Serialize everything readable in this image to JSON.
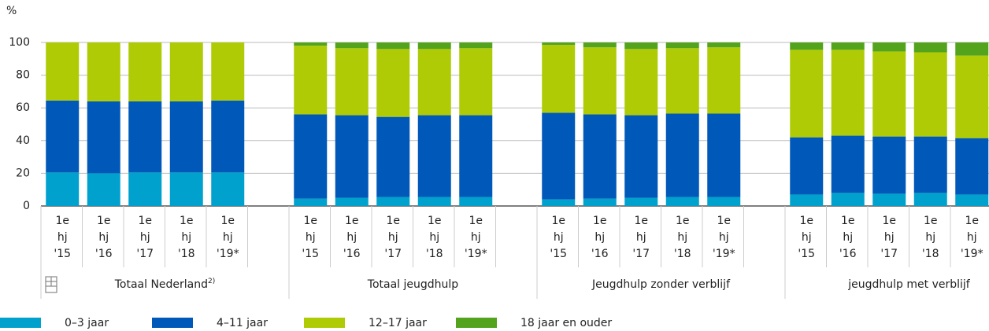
{
  "chart_data": {
    "type": "stacked-bar",
    "y_unit": "%",
    "ylim": [
      0,
      100
    ],
    "yticks": [
      0,
      20,
      40,
      60,
      80,
      100
    ],
    "grid": true,
    "groups": [
      {
        "name": "Totaal Nederland",
        "note": "2)",
        "categories": [
          [
            "1e",
            "hj",
            "'15"
          ],
          [
            "1e",
            "hj",
            "'16"
          ],
          [
            "1e",
            "hj",
            "'17"
          ],
          [
            "1e",
            "hj",
            "'18"
          ],
          [
            "1e",
            "hj",
            "'19*"
          ]
        ]
      },
      {
        "name": "Totaal jeugdhulp",
        "categories": [
          [
            "1e",
            "hj",
            "'15"
          ],
          [
            "1e",
            "hj",
            "'16"
          ],
          [
            "1e",
            "hj",
            "'17"
          ],
          [
            "1e",
            "hj",
            "'18"
          ],
          [
            "1e",
            "hj",
            "'19*"
          ]
        ]
      },
      {
        "name": "Jeugdhulp zonder verblijf",
        "categories": [
          [
            "1e",
            "hj",
            "'15"
          ],
          [
            "1e",
            "hj",
            "'16"
          ],
          [
            "1e",
            "hj",
            "'17"
          ],
          [
            "1e",
            "hj",
            "'18"
          ],
          [
            "1e",
            "hj",
            "'19*"
          ]
        ]
      },
      {
        "name": "jeugdhulp met verblijf",
        "categories": [
          [
            "1e",
            "hj",
            "'15"
          ],
          [
            "1e",
            "hj",
            "'16"
          ],
          [
            "1e",
            "hj",
            "'17"
          ],
          [
            "1e",
            "hj",
            "'18"
          ],
          [
            "1e",
            "hj",
            "'19*"
          ]
        ]
      }
    ],
    "series": [
      {
        "name": "0–3 jaar",
        "color": "#00a1cd",
        "values": [
          20.5,
          20,
          20.5,
          20.5,
          20.5,
          4.5,
          5,
          5.5,
          5.5,
          5.5,
          4,
          4.5,
          5,
          5.5,
          5.5,
          7,
          8,
          7.5,
          8,
          7
        ]
      },
      {
        "name": "4–11 jaar",
        "color": "#0058b8",
        "values": [
          44,
          44,
          43.5,
          43.5,
          44,
          51.5,
          50.5,
          49,
          50,
          50,
          53,
          51.5,
          50.5,
          51,
          51,
          35,
          35,
          35,
          34.5,
          34.5
        ]
      },
      {
        "name": "12–17 jaar",
        "color": "#afcb05",
        "values": [
          35.5,
          36,
          36,
          36,
          35.5,
          42,
          41,
          41.5,
          40.5,
          41,
          41.5,
          41,
          40.5,
          40,
          40.5,
          53.5,
          52.5,
          52,
          51.5,
          50.5
        ]
      },
      {
        "name": "18 jaar en ouder",
        "color": "#53a31d",
        "values": [
          0,
          0,
          0,
          0,
          0,
          2,
          3.5,
          4,
          4,
          3.5,
          1.5,
          3,
          4,
          3.5,
          3,
          4.5,
          4.5,
          5.5,
          6,
          8
        ]
      }
    ]
  }
}
